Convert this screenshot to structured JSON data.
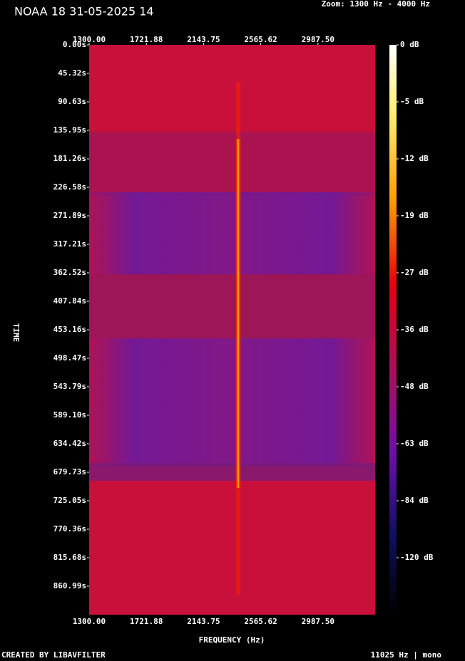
{
  "chart_data": {
    "type": "spectrogram",
    "title": "NOAA 18 31-05-2025 14",
    "subtitle": "Zoom: 1300 Hz - 4000 Hz",
    "x_label": "FREQUENCY (Hz)",
    "y_label": "TIME",
    "xlim": [
      1300,
      3409.375
    ],
    "xticks": [
      {
        "value": 1300,
        "label": "1300.00"
      },
      {
        "value": 1721.88,
        "label": "1721.88"
      },
      {
        "value": 2143.75,
        "label": "2143.75"
      },
      {
        "value": 2565.62,
        "label": "2565.62"
      },
      {
        "value": 2987.5,
        "label": "2987.50"
      }
    ],
    "ylim": [
      0,
      906.3
    ],
    "yticks": [
      {
        "value": 0,
        "label": "0.00s"
      },
      {
        "value": 45.32,
        "label": "45.32s"
      },
      {
        "value": 90.63,
        "label": "90.63s"
      },
      {
        "value": 135.95,
        "label": "135.95s"
      },
      {
        "value": 181.26,
        "label": "181.26s"
      },
      {
        "value": 226.58,
        "label": "226.58s"
      },
      {
        "value": 271.89,
        "label": "271.89s"
      },
      {
        "value": 317.21,
        "label": "317.21s"
      },
      {
        "value": 362.52,
        "label": "362.52s"
      },
      {
        "value": 407.84,
        "label": "407.84s"
      },
      {
        "value": 453.16,
        "label": "453.16s"
      },
      {
        "value": 498.47,
        "label": "498.47s"
      },
      {
        "value": 543.79,
        "label": "543.79s"
      },
      {
        "value": 589.1,
        "label": "589.10s"
      },
      {
        "value": 634.42,
        "label": "634.42s"
      },
      {
        "value": 679.73,
        "label": "679.73s"
      },
      {
        "value": 725.05,
        "label": "725.05s"
      },
      {
        "value": 770.36,
        "label": "770.36s"
      },
      {
        "value": 815.68,
        "label": "815.68s"
      },
      {
        "value": 860.99,
        "label": "860.99s"
      }
    ],
    "colorbar_ticks": [
      {
        "value": 0,
        "label": "0 dB"
      },
      {
        "value": -5,
        "label": "-5 dB"
      },
      {
        "value": -12,
        "label": "-12 dB"
      },
      {
        "value": -19,
        "label": "-19 dB"
      },
      {
        "value": -27,
        "label": "-27 dB"
      },
      {
        "value": -36,
        "label": "-36 dB"
      },
      {
        "value": -48,
        "label": "-48 dB"
      },
      {
        "value": -63,
        "label": "-63 dB"
      },
      {
        "value": -84,
        "label": "-84 dB"
      },
      {
        "value": -120,
        "label": "-120 dB"
      }
    ],
    "footer_left": "CREATED BY LIBAVFILTER",
    "footer_right": "11025 Hz | mono"
  }
}
